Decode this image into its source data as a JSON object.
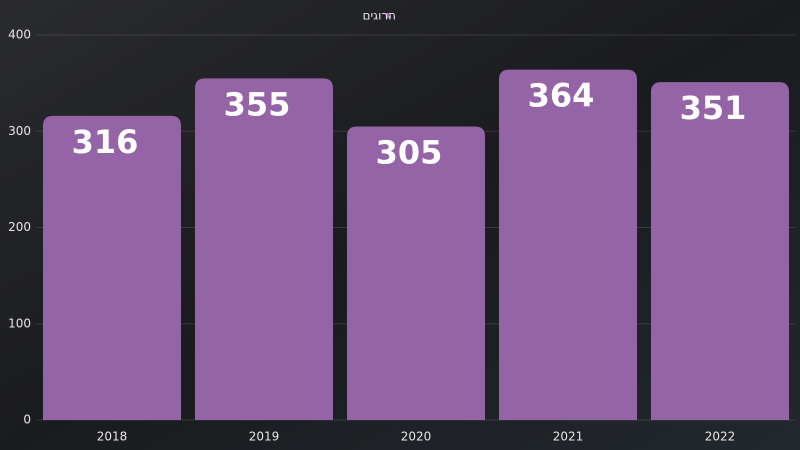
{
  "chart_data": {
    "type": "bar",
    "categories": [
      "2018",
      "2019",
      "2020",
      "2021",
      "2022"
    ],
    "series": [
      {
        "name": "הרוגים",
        "color": "#9464a6",
        "values": [
          316,
          355,
          305,
          364,
          351
        ]
      }
    ],
    "ylim": [
      0,
      400
    ],
    "yticks": [
      0,
      100,
      200,
      300,
      400
    ],
    "grid": true,
    "legend": "top"
  }
}
